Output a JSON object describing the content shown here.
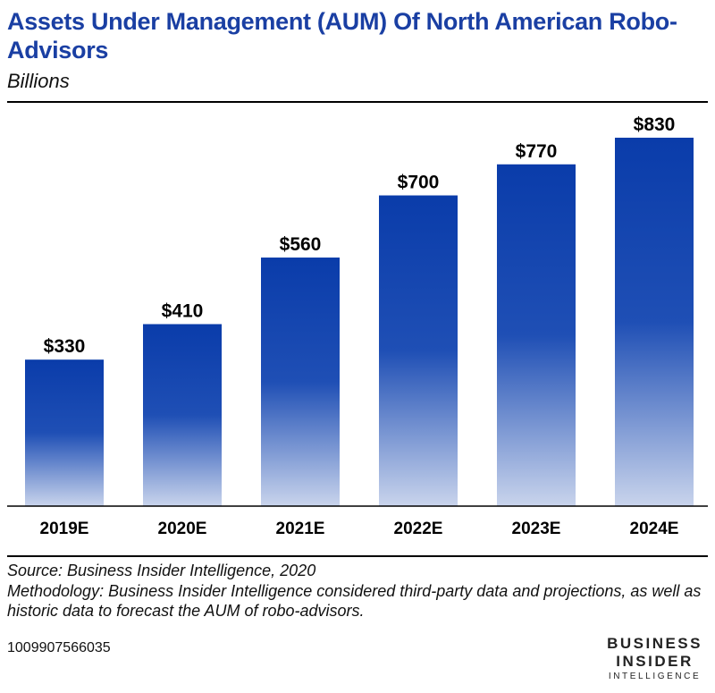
{
  "header": {
    "title": "Assets Under Management (AUM) Of North American Robo-Advisors",
    "subtitle": "Billions"
  },
  "chart_data": {
    "type": "bar",
    "title": "Assets Under Management (AUM) Of North American Robo-Advisors",
    "subtitle": "Billions",
    "xlabel": "",
    "ylabel": "",
    "categories": [
      "2019E",
      "2020E",
      "2021E",
      "2022E",
      "2023E",
      "2024E"
    ],
    "values": [
      330,
      410,
      560,
      700,
      770,
      830
    ],
    "data_labels": [
      "$330",
      "$410",
      "$560",
      "$700",
      "$770",
      "$830"
    ],
    "ylim": [
      0,
      830
    ],
    "grid": false,
    "legend": "none",
    "bar_color_top": "#0a3caa",
    "bar_color_bottom": "#c9d4ec"
  },
  "footer": {
    "source": "Source: Business Insider Intelligence, 2020",
    "methodology": "Methodology: Business Insider Intelligence considered third-party data and projections, as well as historic data to forecast the AUM of robo-advisors.",
    "code": "1009907566035"
  },
  "logo": {
    "line1": "BUSINESS",
    "line2": "INSIDER",
    "line3": "INTELLIGENCE"
  }
}
